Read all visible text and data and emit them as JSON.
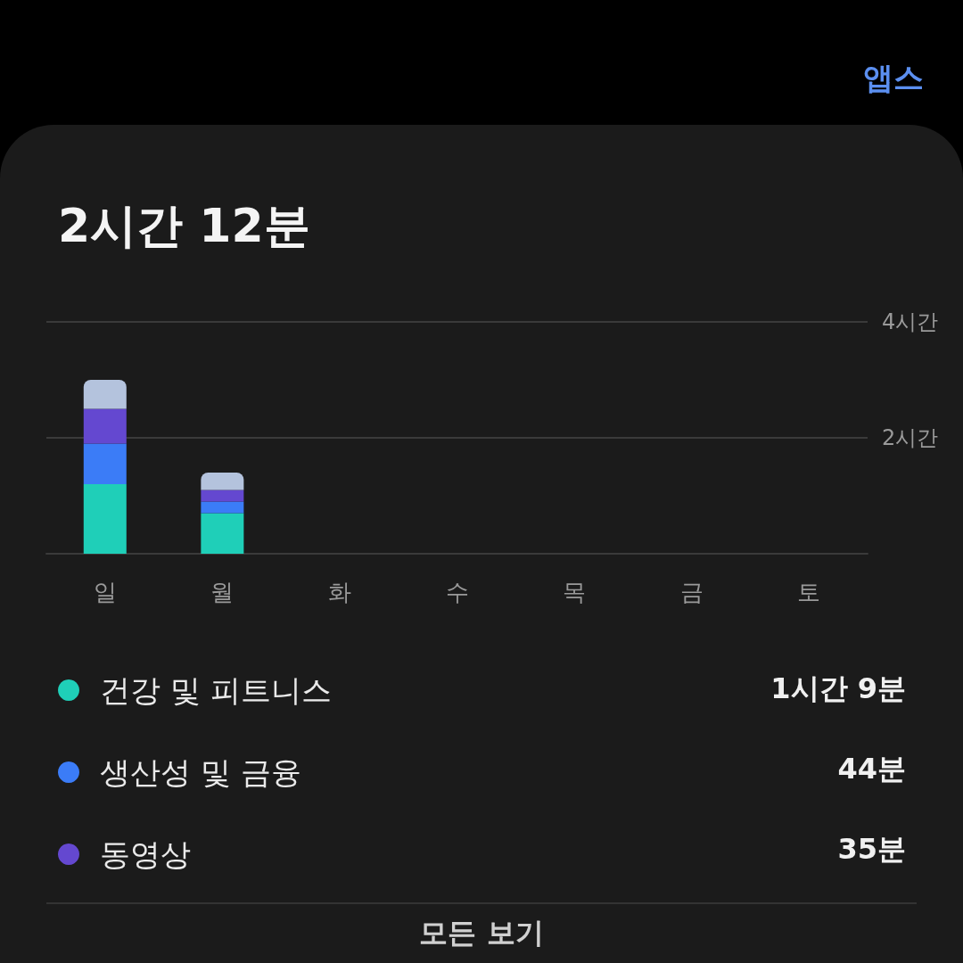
{
  "chart_data": {
    "type": "bar",
    "title": "2시간 12분",
    "stacked": true,
    "categories": [
      "일",
      "월",
      "화",
      "수",
      "목",
      "금",
      "토"
    ],
    "series": [
      {
        "name": "건강 및 피트니스",
        "color": "#1fcfb8",
        "values": [
          1.2,
          0.7,
          null,
          null,
          null,
          null,
          null
        ]
      },
      {
        "name": "생산성 및 금융",
        "color": "#3b7cf7",
        "values": [
          0.7,
          0.2,
          null,
          null,
          null,
          null,
          null
        ]
      },
      {
        "name": "동영상",
        "color": "#6448d0",
        "values": [
          0.6,
          0.2,
          null,
          null,
          null,
          null,
          null
        ]
      },
      {
        "color": "#b4c3dd",
        "values": [
          0.5,
          0.3,
          null,
          null,
          null,
          null,
          null
        ]
      }
    ],
    "ylim": [
      0,
      4
    ],
    "yticks": [
      {
        "value": 0,
        "label": null
      },
      {
        "value": 2,
        "label": "2시간"
      },
      {
        "value": 4,
        "label": "4시간"
      }
    ],
    "grid": "y",
    "legend": "bottom left",
    "annotations": [
      "앱스",
      "1시간 9분",
      "44분",
      "35분",
      "모든 보기"
    ]
  }
}
